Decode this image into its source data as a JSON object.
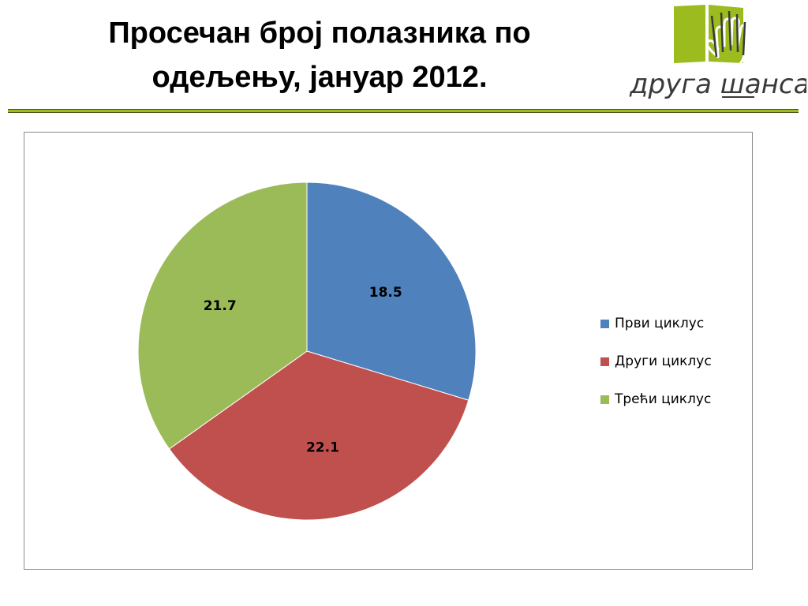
{
  "slide": {
    "title_line1": "Просечан број полазника по",
    "title_line2": "одељењу, јануар 2012."
  },
  "logo": {
    "text": "друга шанса",
    "colors": {
      "book": "#9bbb1f",
      "text": "#3a3a3a"
    }
  },
  "colors": {
    "rule": "#9bbb1f"
  },
  "chart_data": {
    "type": "pie",
    "categories": [
      "Први циклус",
      "Други циклус",
      "Трећи циклус"
    ],
    "values": [
      18.5,
      22.1,
      21.7
    ],
    "data_labels": [
      "18.5",
      "22.1",
      "21.7"
    ],
    "colors": [
      "#4f81bd",
      "#c0504d",
      "#9bbb59"
    ],
    "legend_position": "right",
    "start_angle_deg": 0,
    "direction": "clockwise"
  }
}
